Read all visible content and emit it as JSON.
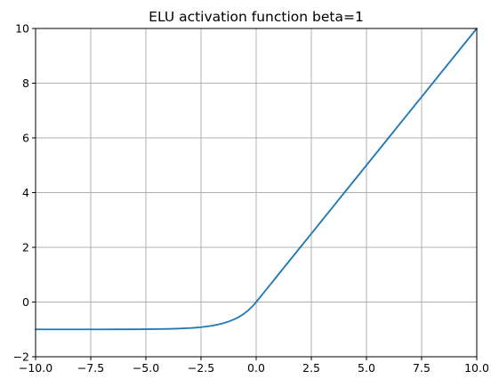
{
  "chart_data": {
    "type": "line",
    "title": "ELU activation function beta=1",
    "xlabel": "",
    "ylabel": "",
    "xlim": [
      -10,
      10
    ],
    "ylim": [
      -2,
      10
    ],
    "xticks": [
      -10.0,
      -7.5,
      -5.0,
      -2.5,
      0.0,
      2.5,
      5.0,
      7.5,
      10.0
    ],
    "xtick_labels": [
      "−10.0",
      "−7.5",
      "−5.0",
      "−2.5",
      "0.0",
      "2.5",
      "5.0",
      "7.5",
      "10.0"
    ],
    "yticks": [
      -2,
      0,
      2,
      4,
      6,
      8,
      10
    ],
    "ytick_labels": [
      "−2",
      "0",
      "2",
      "4",
      "6",
      "8",
      "10"
    ],
    "grid": true,
    "legend": "none",
    "series": [
      {
        "color": "#1f77b4",
        "x": [
          -10,
          -9,
          -8,
          -7,
          -6,
          -5,
          -4.5,
          -4,
          -3.5,
          -3,
          -2.75,
          -2.5,
          -2.25,
          -2,
          -1.75,
          -1.5,
          -1.25,
          -1,
          -0.9,
          -0.8,
          -0.7,
          -0.6,
          -0.5,
          -0.4,
          -0.3,
          -0.2,
          -0.1,
          0,
          0.5,
          1,
          2,
          2.5,
          3,
          4,
          5,
          6,
          7,
          7.5,
          8,
          9,
          10
        ],
        "y": [
          -1.0,
          -0.9999,
          -0.9997,
          -0.9991,
          -0.9975,
          -0.9933,
          -0.9889,
          -0.9817,
          -0.9698,
          -0.9502,
          -0.9361,
          -0.9179,
          -0.8946,
          -0.8647,
          -0.8262,
          -0.7769,
          -0.7135,
          -0.6321,
          -0.5934,
          -0.5507,
          -0.5034,
          -0.4512,
          -0.3935,
          -0.3297,
          -0.2592,
          -0.1813,
          -0.0952,
          0,
          0.5,
          1,
          2,
          2.5,
          3,
          4,
          5,
          6,
          7,
          7.5,
          8,
          9,
          10
        ]
      }
    ]
  }
}
